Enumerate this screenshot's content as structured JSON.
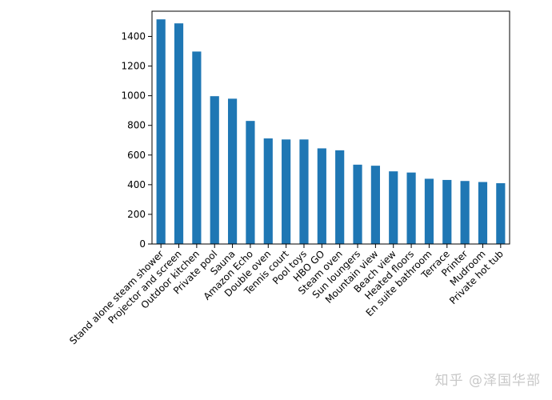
{
  "chart_data": {
    "type": "bar",
    "categories": [
      "Stand alone steam shower",
      "Projector and screen",
      "Outdoor kitchen",
      "Private pool",
      "Sauna",
      "Amazon Echo",
      "Double oven",
      "Tennis court",
      "Pool toys",
      "HBO GO",
      "Steam oven",
      "Sun loungers",
      "Mountain view",
      "Beach view",
      "Heated floors",
      "En suite bathroom",
      "Terrace",
      "Printer",
      "Mudroom",
      "Private hot tub"
    ],
    "values": [
      1515,
      1488,
      1298,
      997,
      980,
      830,
      712,
      705,
      705,
      645,
      632,
      535,
      528,
      490,
      482,
      440,
      432,
      425,
      418,
      410
    ],
    "ylim": [
      0,
      1570
    ],
    "yticks": [
      0,
      200,
      400,
      600,
      800,
      1000,
      1200,
      1400
    ],
    "bar_color": "#1f77b4",
    "grid": false,
    "legend": "none"
  },
  "watermark": "知乎 @泽国华部"
}
